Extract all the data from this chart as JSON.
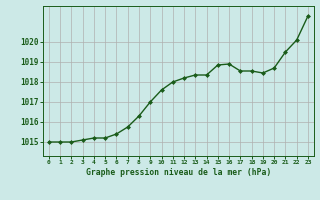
{
  "x": [
    0,
    1,
    2,
    3,
    4,
    5,
    6,
    7,
    8,
    9,
    10,
    11,
    12,
    13,
    14,
    15,
    16,
    17,
    18,
    19,
    20,
    21,
    22,
    23
  ],
  "y": [
    1015.0,
    1015.0,
    1015.0,
    1015.1,
    1015.2,
    1015.2,
    1015.4,
    1015.75,
    1016.3,
    1017.0,
    1017.6,
    1018.0,
    1018.2,
    1018.35,
    1018.35,
    1018.85,
    1018.9,
    1018.55,
    1018.55,
    1018.45,
    1018.7,
    1019.5,
    1020.1,
    1021.3
  ],
  "line_color": "#1a5c1a",
  "marker": "D",
  "marker_size": 2.0,
  "bg_color": "#cce9e7",
  "grid_color": "#b0b0b0",
  "xlabel": "Graphe pression niveau de la mer (hPa)",
  "xlabel_color": "#1a5c1a",
  "tick_color": "#1a5c1a",
  "ylim_min": 1014.3,
  "ylim_max": 1021.8,
  "yticks": [
    1015,
    1016,
    1017,
    1018,
    1019,
    1020
  ],
  "line_width": 1.0,
  "marker_color": "#1a5c1a"
}
